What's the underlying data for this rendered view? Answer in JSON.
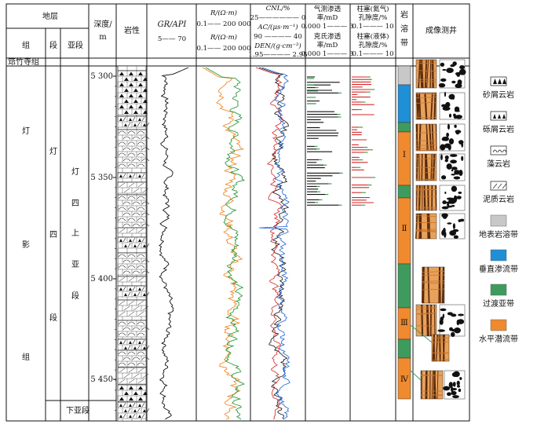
{
  "header": {
    "strata": "地层",
    "group": "组",
    "section": "段",
    "subsection": "亚段",
    "depth": "深度/",
    "depth_unit": "m",
    "lithology": "岩性",
    "gr": "GR/API",
    "gr_range": "5—— 70",
    "rt": "R/(Ω·m)",
    "rt_range": "0.1—— 200 000",
    "rxo": "R/(Ω·m)",
    "rxo_range": "0.1—— 200 000",
    "cnl": "CNL/%",
    "cnl_range": "25—————— 0",
    "ac": "AC/(μs·m⁻¹)",
    "ac_range": "90 ———— 40",
    "den": "DEN/(g·cm⁻³)",
    "den_range": "1.95———— 2.95",
    "gas_perm_a": "气测渗透",
    "gas_perm_b": "率/mD",
    "gas_perm_range": "0.000 1——— 3",
    "kl_perm_a": "克氏渗透",
    "kl_perm_b": "率/mD",
    "kl_perm_range": "0.000 1——— 3",
    "plug_gas_a": "柱塞(氦气)",
    "plug_gas_b": "孔隙度/%",
    "plug_gas_range": "0.1——— 10",
    "plug_liq_a": "柱塞(液体)",
    "plug_liq_b": "孔隙度/%",
    "plug_liq_range": "0.1——— 10",
    "karst": "岩溶带",
    "imaging": "成像测井"
  },
  "strata": {
    "top_formation": "筇竹寺组",
    "group_name": "灯影组",
    "section_name": "灯四段",
    "upper_sub": "灯四上亚段",
    "lower_sub": "下亚段"
  },
  "depth_ticks": [
    "5 300",
    "5 350",
    "5 400",
    "5 450"
  ],
  "karst_zones": [
    "Ⅰ",
    "Ⅱ",
    "Ⅲ",
    "Ⅳ"
  ],
  "legend": [
    {
      "label": "砂屑云岩",
      "kind": "pattern"
    },
    {
      "label": "砾屑云岩",
      "kind": "pattern"
    },
    {
      "label": "藻云岩",
      "kind": "pattern"
    },
    {
      "label": "泥质云岩",
      "kind": "pattern"
    },
    {
      "label": "地表岩溶带",
      "kind": "fill",
      "color": "#c8c8c8"
    },
    {
      "label": "垂直渗流带",
      "kind": "fill",
      "color": "#1f8fd6"
    },
    {
      "label": "过渡亚带",
      "kind": "fill",
      "color": "#3f9a5e"
    },
    {
      "label": "水平潜流带",
      "kind": "fill",
      "color": "#ef8a2e"
    }
  ],
  "colors": {
    "surface_karst": "#c8c8c8",
    "vertical_vadose": "#1f8fd6",
    "transition": "#3f9a5e",
    "horizontal_phreatic": "#ef8a2e",
    "gr_curve": "#111111",
    "rt_curve": "#2e9b3e",
    "rxo_curve": "#f08a2a",
    "cnl_curve": "#111111",
    "ac_curve": "#d22a2a",
    "den_curve": "#1c63d6",
    "gas_perm_bar": "#111111",
    "kl_perm_bar": "#2e9b3e",
    "plug_gas_bar": "#d22a2a",
    "plug_liq_bar": "#2e9b3e"
  }
}
